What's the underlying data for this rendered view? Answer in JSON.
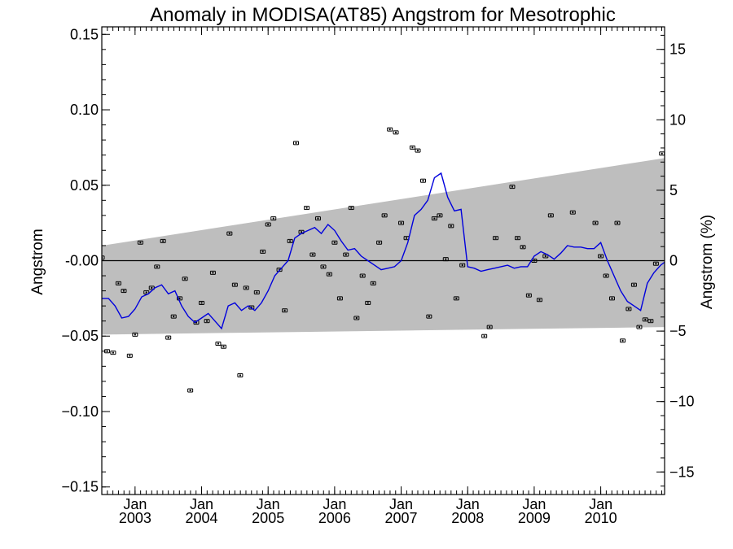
{
  "chart_data": {
    "type": "line",
    "title": "Anomaly in MODISA(AT85) Angstrom for Mesotrophic",
    "ylabel": "Angstrom",
    "y2label": "Angstrom (%)",
    "xlim": [
      2002.5,
      2010.96
    ],
    "ylim": [
      -0.155,
      0.155
    ],
    "y2lim": [
      -16.6,
      16.6
    ],
    "yticks": [
      {
        "value": 0.15,
        "label": "0.15"
      },
      {
        "value": 0.1,
        "label": "0.10"
      },
      {
        "value": 0.05,
        "label": "0.05"
      },
      {
        "value": 0.0,
        "label": "-0.00"
      },
      {
        "value": -0.05,
        "label": "−0.05"
      },
      {
        "value": -0.1,
        "label": "−0.10"
      },
      {
        "value": -0.15,
        "label": "−0.15"
      }
    ],
    "y2ticks": [
      {
        "value": 15,
        "label": "15"
      },
      {
        "value": 10,
        "label": "10"
      },
      {
        "value": 5,
        "label": "5"
      },
      {
        "value": 0,
        "label": "0"
      },
      {
        "value": -5,
        "label": "−5"
      },
      {
        "value": -10,
        "label": "−10"
      },
      {
        "value": -15,
        "label": "−15"
      }
    ],
    "xticks": [
      {
        "value": 2003.0,
        "month": "Jan",
        "year": "2003"
      },
      {
        "value": 2004.0,
        "month": "Jan",
        "year": "2004"
      },
      {
        "value": 2005.0,
        "month": "Jan",
        "year": "2005"
      },
      {
        "value": 2006.0,
        "month": "Jan",
        "year": "2006"
      },
      {
        "value": 2007.0,
        "month": "Jan",
        "year": "2007"
      },
      {
        "value": 2008.0,
        "month": "Jan",
        "year": "2008"
      },
      {
        "value": 2009.0,
        "month": "Jan",
        "year": "2009"
      },
      {
        "value": 2010.0,
        "month": "Jan",
        "year": "2010"
      }
    ],
    "band": {
      "x": [
        2002.5,
        2010.96
      ],
      "upper": [
        0.01,
        0.068
      ],
      "lower": [
        -0.049,
        -0.044
      ],
      "color": "#bebebe"
    },
    "zero_line": 0.0,
    "series": [
      {
        "type": "scatter",
        "marker": "error-bar",
        "color": "#000000",
        "x": [
          2002.5,
          2002.58,
          2002.67,
          2002.75,
          2002.83,
          2002.92,
          2003.0,
          2003.08,
          2003.17,
          2003.25,
          2003.33,
          2003.42,
          2003.5,
          2003.58,
          2003.67,
          2003.75,
          2003.83,
          2003.92,
          2004.0,
          2004.08,
          2004.17,
          2004.25,
          2004.33,
          2004.42,
          2004.5,
          2004.58,
          2004.67,
          2004.75,
          2004.83,
          2004.92,
          2005.0,
          2005.08,
          2005.17,
          2005.25,
          2005.33,
          2005.42,
          2005.5,
          2005.58,
          2005.67,
          2005.75,
          2005.83,
          2005.92,
          2006.0,
          2006.08,
          2006.17,
          2006.25,
          2006.33,
          2006.42,
          2006.5,
          2006.58,
          2006.67,
          2006.75,
          2006.83,
          2006.92,
          2007.0,
          2007.08,
          2007.17,
          2007.25,
          2007.33,
          2007.42,
          2007.5,
          2007.58,
          2007.67,
          2007.75,
          2007.83,
          2007.92,
          2008.25,
          2008.33,
          2008.42,
          2008.67,
          2008.75,
          2008.83,
          2008.92,
          2009.0,
          2009.08,
          2009.17,
          2009.25,
          2009.58,
          2009.92,
          2010.0,
          2010.08,
          2010.17,
          2010.25,
          2010.33,
          2010.42,
          2010.5,
          2010.58,
          2010.67,
          2010.75,
          2010.83,
          2010.92
        ],
        "y": [
          0.002,
          -0.06,
          -0.061,
          -0.015,
          -0.02,
          -0.063,
          -0.049,
          0.012,
          -0.021,
          -0.018,
          -0.004,
          0.013,
          -0.051,
          -0.037,
          -0.025,
          -0.012,
          -0.086,
          -0.041,
          -0.028,
          -0.04,
          -0.008,
          -0.055,
          -0.057,
          0.018,
          -0.016,
          -0.076,
          -0.018,
          -0.031,
          -0.021,
          0.006,
          0.024,
          0.028,
          -0.006,
          -0.033,
          0.013,
          0.078,
          0.019,
          0.035,
          0.004,
          0.028,
          -0.004,
          -0.009,
          0.012,
          -0.025,
          0.004,
          0.035,
          -0.038,
          -0.01,
          -0.028,
          -0.015,
          0.012,
          0.03,
          0.087,
          0.085,
          0.025,
          0.015,
          0.075,
          0.073,
          0.053,
          -0.037,
          0.028,
          0.03,
          0.001,
          0.023,
          -0.025,
          -0.003,
          -0.05,
          -0.044,
          0.015,
          0.049,
          0.015,
          0.009,
          -0.023,
          0.0,
          -0.026,
          0.003,
          0.03,
          0.032,
          0.025,
          0.003,
          -0.01,
          -0.025,
          0.025,
          -0.053,
          -0.032,
          -0.016,
          -0.044,
          -0.039,
          -0.04,
          -0.002,
          0.071
        ]
      },
      {
        "type": "line",
        "color": "#0000dd",
        "x": [
          2002.5,
          2002.6,
          2002.7,
          2002.8,
          2002.9,
          2003.0,
          2003.1,
          2003.2,
          2003.3,
          2003.4,
          2003.5,
          2003.6,
          2003.7,
          2003.8,
          2003.9,
          2004.0,
          2004.1,
          2004.2,
          2004.3,
          2004.4,
          2004.5,
          2004.6,
          2004.7,
          2004.8,
          2004.9,
          2005.0,
          2005.1,
          2005.2,
          2005.3,
          2005.4,
          2005.5,
          2005.6,
          2005.7,
          2005.8,
          2005.9,
          2006.0,
          2006.1,
          2006.2,
          2006.3,
          2006.4,
          2006.5,
          2006.6,
          2006.7,
          2006.8,
          2006.9,
          2007.0,
          2007.1,
          2007.2,
          2007.3,
          2007.4,
          2007.5,
          2007.6,
          2007.7,
          2007.8,
          2007.9,
          2008.0,
          2008.1,
          2008.2,
          2008.3,
          2008.4,
          2008.5,
          2008.6,
          2008.7,
          2008.8,
          2008.9,
          2009.0,
          2009.1,
          2009.2,
          2009.3,
          2009.4,
          2009.5,
          2009.6,
          2009.7,
          2009.8,
          2009.9,
          2010.0,
          2010.1,
          2010.2,
          2010.3,
          2010.4,
          2010.5,
          2010.6,
          2010.7,
          2010.8,
          2010.9,
          2010.96
        ],
        "y": [
          -0.025,
          -0.025,
          -0.03,
          -0.038,
          -0.037,
          -0.032,
          -0.024,
          -0.022,
          -0.018,
          -0.016,
          -0.022,
          -0.02,
          -0.03,
          -0.037,
          -0.041,
          -0.038,
          -0.035,
          -0.04,
          -0.045,
          -0.03,
          -0.028,
          -0.033,
          -0.03,
          -0.033,
          -0.028,
          -0.02,
          -0.01,
          -0.005,
          0.0,
          0.015,
          0.018,
          0.02,
          0.022,
          0.018,
          0.024,
          0.02,
          0.013,
          0.007,
          0.008,
          0.003,
          0.0,
          -0.003,
          -0.006,
          -0.005,
          -0.004,
          0.0,
          0.012,
          0.03,
          0.034,
          0.04,
          0.055,
          0.058,
          0.042,
          0.033,
          0.034,
          -0.004,
          -0.005,
          -0.007,
          -0.006,
          -0.005,
          -0.004,
          -0.003,
          -0.005,
          -0.004,
          -0.004,
          0.003,
          0.006,
          0.004,
          0.001,
          0.005,
          0.01,
          0.009,
          0.009,
          0.008,
          0.008,
          0.012,
          0.0,
          -0.01,
          -0.02,
          -0.027,
          -0.03,
          -0.033,
          -0.015,
          -0.008,
          -0.003,
          -0.001
        ]
      }
    ]
  }
}
